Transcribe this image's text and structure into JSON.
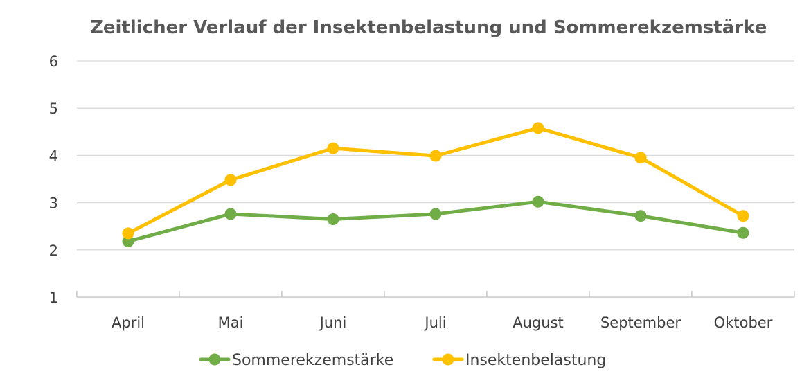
{
  "chart_data": {
    "type": "line",
    "title": "Zeitlicher Verlauf der Insektenbelastung und Sommerekzemstärke",
    "xlabel": "",
    "ylabel": "",
    "categories": [
      "April",
      "Mai",
      "Juni",
      "Juli",
      "August",
      "September",
      "Oktober"
    ],
    "yticks": [
      "1",
      "2",
      "3",
      "4",
      "5",
      "6"
    ],
    "ylim": [
      1,
      6
    ],
    "grid": true,
    "legend_position": "bottom",
    "series": [
      {
        "name": "Sommerekzemstärke",
        "color": "#70ad47",
        "values": [
          2.18,
          2.76,
          2.65,
          2.76,
          3.02,
          2.72,
          2.36
        ]
      },
      {
        "name": "Insektenbelastung",
        "color": "#ffc000",
        "values": [
          2.35,
          3.48,
          4.15,
          3.99,
          4.58,
          3.95,
          2.72
        ]
      }
    ]
  }
}
